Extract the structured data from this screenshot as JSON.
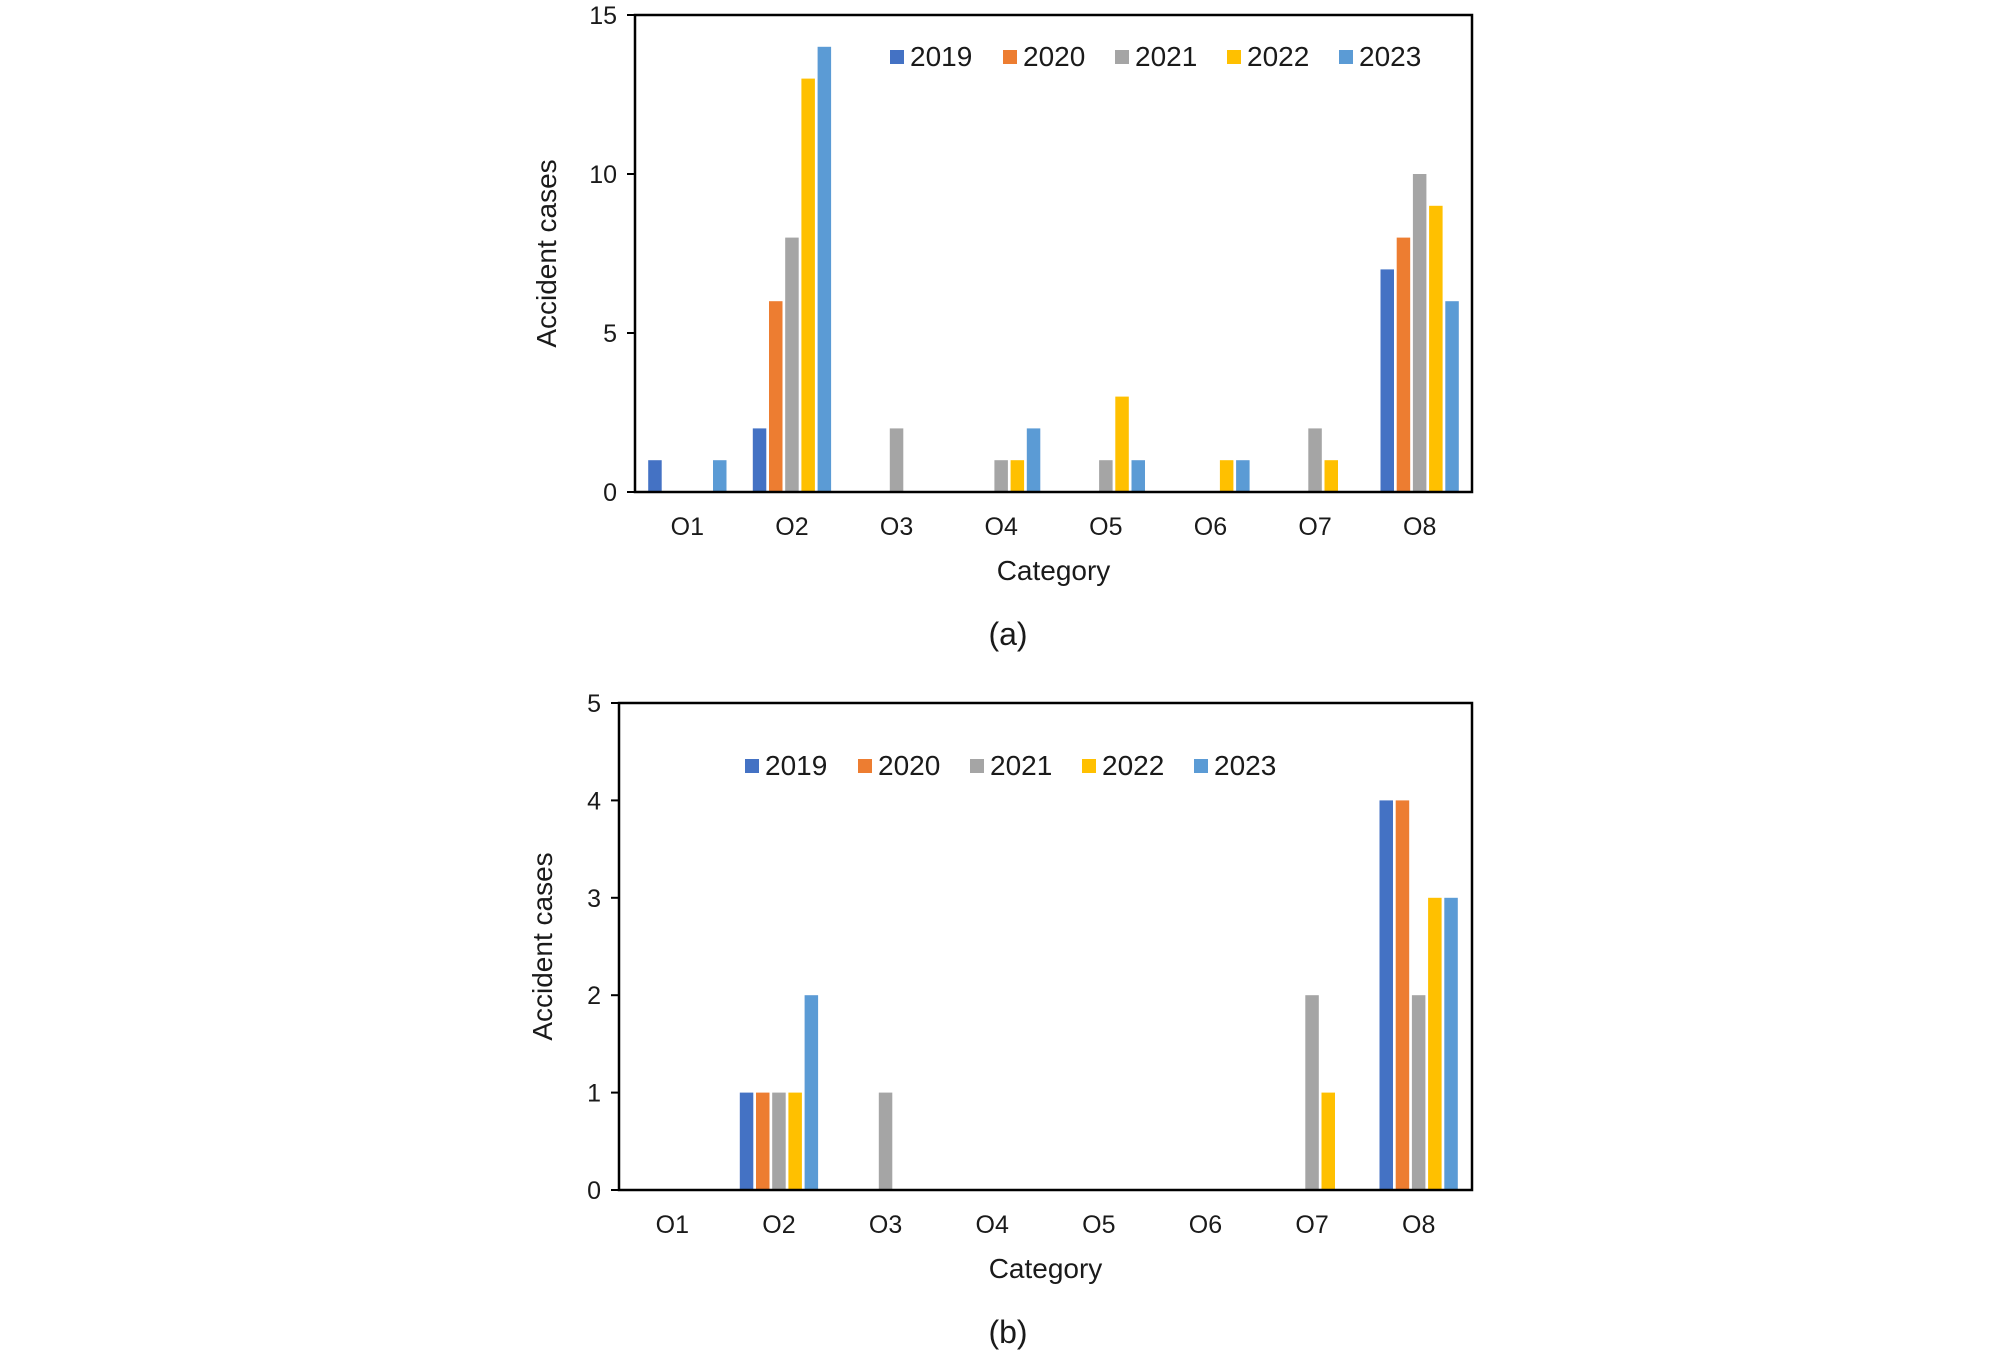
{
  "figure": {
    "captions": [
      "(a)",
      "(b)"
    ]
  },
  "colors": {
    "2019": "#4472C4",
    "2020": "#ED7D31",
    "2021": "#A5A5A5",
    "2022": "#FFC000",
    "2023": "#5B9BD5"
  },
  "chart_data": [
    {
      "type": "bar",
      "caption": "(a)",
      "title": "",
      "xlabel": "Category",
      "ylabel": "Accident cases",
      "categories": [
        "O1",
        "O2",
        "O3",
        "O4",
        "O5",
        "O6",
        "O7",
        "O8"
      ],
      "ylim": [
        0,
        15
      ],
      "yticks": [
        0,
        5,
        10,
        15
      ],
      "legend": "top-right",
      "series": [
        {
          "name": "2019",
          "values": [
            1,
            2,
            0,
            0,
            0,
            0,
            0,
            7
          ]
        },
        {
          "name": "2020",
          "values": [
            0,
            6,
            0,
            0,
            0,
            0,
            0,
            8
          ]
        },
        {
          "name": "2021",
          "values": [
            0,
            8,
            2,
            1,
            1,
            0,
            2,
            10
          ]
        },
        {
          "name": "2022",
          "values": [
            0,
            13,
            0,
            1,
            3,
            1,
            1,
            9
          ]
        },
        {
          "name": "2023",
          "values": [
            1,
            14,
            0,
            2,
            1,
            1,
            0,
            6
          ]
        }
      ]
    },
    {
      "type": "bar",
      "caption": "(b)",
      "title": "",
      "xlabel": "Category",
      "ylabel": "Accident cases",
      "categories": [
        "O1",
        "O2",
        "O3",
        "O4",
        "O5",
        "O6",
        "O7",
        "O8"
      ],
      "ylim": [
        0,
        5
      ],
      "yticks": [
        0,
        1,
        2,
        3,
        4,
        5
      ],
      "legend": "top-center",
      "series": [
        {
          "name": "2019",
          "values": [
            0,
            1,
            0,
            0,
            0,
            0,
            0,
            4
          ]
        },
        {
          "name": "2020",
          "values": [
            0,
            1,
            0,
            0,
            0,
            0,
            0,
            4
          ]
        },
        {
          "name": "2021",
          "values": [
            0,
            1,
            1,
            0,
            0,
            0,
            2,
            2
          ]
        },
        {
          "name": "2022",
          "values": [
            0,
            1,
            0,
            0,
            0,
            0,
            1,
            3
          ]
        },
        {
          "name": "2023",
          "values": [
            0,
            2,
            0,
            0,
            0,
            0,
            0,
            3
          ]
        }
      ]
    }
  ]
}
